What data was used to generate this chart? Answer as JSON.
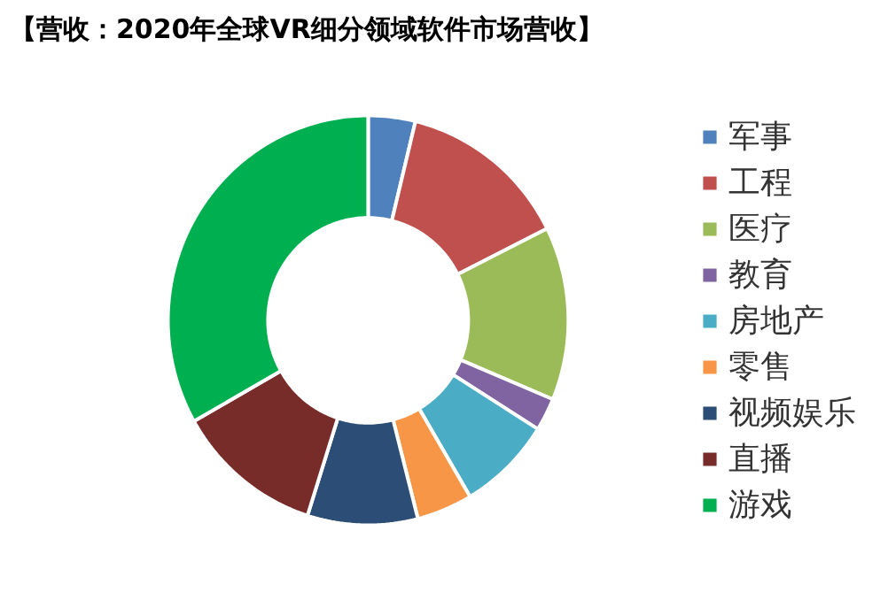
{
  "chart_data": {
    "type": "donut",
    "title": "【营收：2020年全球VR细分领域软件市场营收】",
    "categories": [
      "军事",
      "工程",
      "医疗",
      "教育",
      "房地产",
      "零售",
      "视频娱乐",
      "直播",
      "游戏"
    ],
    "values": [
      3.8,
      13.8,
      13.7,
      2.6,
      7.6,
      4.5,
      8.9,
      11.9,
      33.2
    ],
    "colors": [
      "#4f81bd",
      "#c0504d",
      "#9bbb59",
      "#8064a2",
      "#4bacc6",
      "#f79646",
      "#2c4d75",
      "#772c2a",
      "#00b050"
    ],
    "legend": "right"
  }
}
